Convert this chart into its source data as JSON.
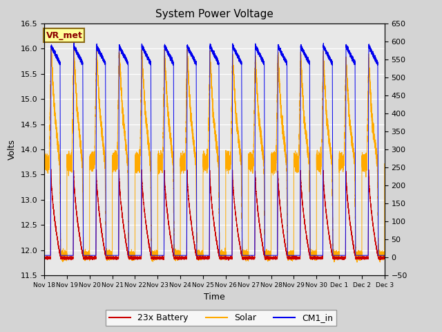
{
  "title": "System Power Voltage",
  "xlabel": "Time",
  "ylabel": "Volts",
  "ylim_left": [
    11.5,
    16.5
  ],
  "ylim_right": [
    -50,
    650
  ],
  "legend_entries": [
    "23x Battery",
    "Solar",
    "CM1_in"
  ],
  "legend_colors": [
    "#cc0000",
    "#ffaa00",
    "#0000ee"
  ],
  "annotation_text": "VR_met",
  "annotation_color": "#8B0000",
  "annotation_bg": "#ffff99",
  "annotation_border": "#8B6914",
  "x_tick_labels": [
    "Nov 18",
    "Nov 19",
    "Nov 20",
    "Nov 21",
    "Nov 22",
    "Nov 23",
    "Nov 24",
    "Nov 25",
    "Nov 26",
    "Nov 27",
    "Nov 28",
    "Nov 29",
    "Nov 30",
    "Dec 1",
    "Dec 2",
    "Dec 3"
  ],
  "fig_facecolor": "#d4d4d4",
  "ax_facecolor": "#e8e8e8"
}
